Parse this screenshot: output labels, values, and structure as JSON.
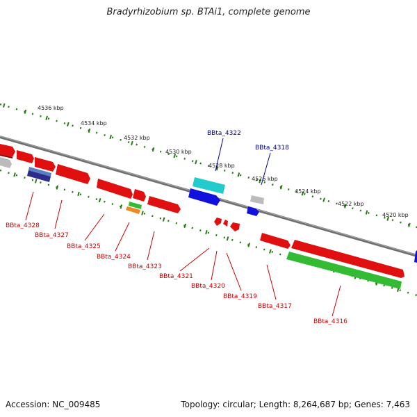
{
  "title": "Bradyrhizobium sp. BTAi1, complete genome",
  "footer": {
    "accession": "Accession: NC_009485",
    "topology": "Topology: circular; Length: 8,264,687 bp; Genes: 7,463"
  },
  "colors": {
    "backbone": "#777777",
    "tick": "#2a7a1a",
    "reverse_label": "#cc0000",
    "forward_label": "#000099"
  },
  "ticks": [
    "4536 kbp",
    "4534 kbp",
    "4532 kbp",
    "4530 kbp",
    "4528 kbp",
    "4526 kbp",
    "4524 kbp",
    "4522 kbp",
    "4520 kbp"
  ],
  "genes": [
    {
      "id": "BBta_4328",
      "strand": "reverse",
      "color_name": "red"
    },
    {
      "id": "BBta_4327",
      "strand": "reverse",
      "color_name": "red"
    },
    {
      "id": "BBta_4325",
      "strand": "reverse",
      "color_name": "red"
    },
    {
      "id": "BBta_4324",
      "strand": "reverse",
      "color_name": "red"
    },
    {
      "id": "BBta_4323",
      "strand": "reverse",
      "color_name": "red"
    },
    {
      "id": "BBta_4322",
      "strand": "forward",
      "color_name": "blue"
    },
    {
      "id": "BBta_4321",
      "strand": "reverse",
      "color_name": "red"
    },
    {
      "id": "BBta_4320",
      "strand": "reverse",
      "color_name": "red"
    },
    {
      "id": "BBta_4319",
      "strand": "reverse",
      "color_name": "red"
    },
    {
      "id": "BBta_4318",
      "strand": "forward",
      "color_name": "blue"
    },
    {
      "id": "BBta_4317",
      "strand": "reverse",
      "color_name": "red"
    },
    {
      "id": "BBta_4316",
      "strand": "reverse",
      "color_name": "red"
    }
  ]
}
